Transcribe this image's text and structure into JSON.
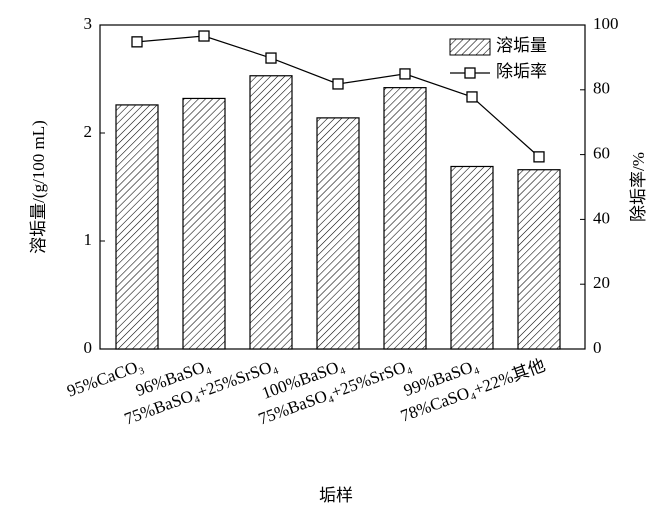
{
  "chart_data": {
    "type": "bar",
    "x_label": "垢样",
    "y_label": "溶垢量/(g/100 mL)",
    "y2_label": "除垢率/%",
    "categories": [
      "95%CaCO₃",
      "96%BaSO₄",
      "75%BaSO₄+25%SrSO₄",
      "100%BaSO₄",
      "75%BaSO₄+25%SrSO₄",
      "99%BaSO₄",
      "78%CaSO₄+22%其他"
    ],
    "series": [
      {
        "name": "溶垢量",
        "type": "bar",
        "color": "#000000",
        "values": [
          2.26,
          2.32,
          2.53,
          2.14,
          2.42,
          1.69,
          1.66
        ]
      },
      {
        "name": "除垢率",
        "type": "line",
        "axis": "y2",
        "color": "#000000",
        "values": [
          94.8,
          96.6,
          89.8,
          81.8,
          84.9,
          77.8,
          59.3
        ]
      }
    ],
    "ylim": [
      0,
      3
    ],
    "yticks": [
      0,
      1,
      2,
      3
    ],
    "y2lim": [
      0,
      100
    ],
    "y2ticks": [
      0,
      20,
      40,
      60,
      80,
      100
    ],
    "legend": "upper-right",
    "grid": false
  }
}
